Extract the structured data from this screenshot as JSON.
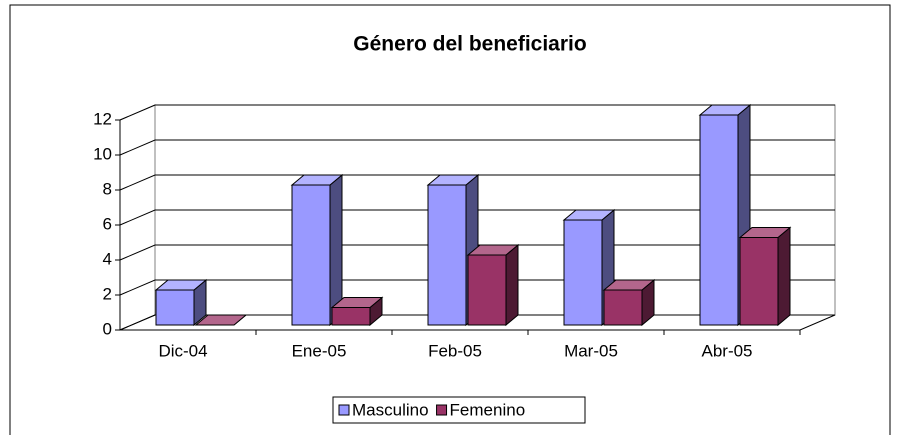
{
  "chart_data": {
    "type": "bar3d",
    "title": "Género del beneficiario",
    "categories": [
      "Dic-04",
      "Ene-05",
      "Feb-05",
      "Mar-05",
      "Abr-05"
    ],
    "series": [
      {
        "name": "Masculino",
        "color": "#9999ff",
        "values": [
          2,
          8,
          8,
          6,
          12
        ]
      },
      {
        "name": "Femenino",
        "color": "#993366",
        "values": [
          0,
          1,
          4,
          2,
          5
        ]
      }
    ],
    "ylim": [
      0,
      12
    ],
    "yticks": [
      0,
      2,
      4,
      6,
      8,
      10,
      12
    ],
    "grid": true,
    "legend": "bottom"
  }
}
